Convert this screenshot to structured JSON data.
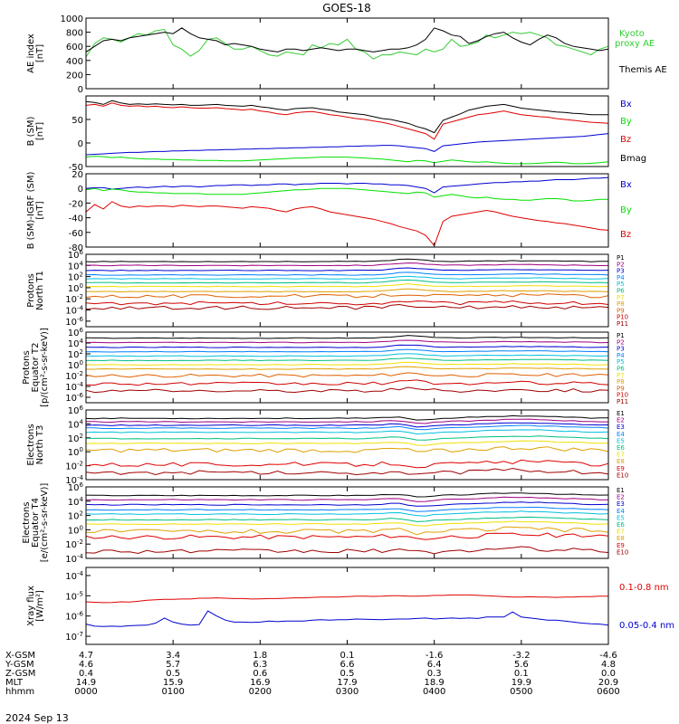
{
  "title": "GOES-18",
  "date_label": "2024 Sep 13",
  "colors": {
    "axis": "#000000",
    "black": "#000000",
    "green": "#00e000",
    "red": "#e00000",
    "blue": "#0000d0",
    "kyoto": "#33cc33"
  },
  "bottom_table": {
    "row_labels": [
      "X-GSM",
      "Y-GSM",
      "Z-GSM",
      "MLT",
      "hhmm"
    ],
    "columns": [
      [
        "4.7",
        "4.6",
        "0.4",
        "14.9",
        "0000"
      ],
      [
        "3.4",
        "5.7",
        "0.5",
        "15.9",
        "0100"
      ],
      [
        "1.8",
        "6.3",
        "0.6",
        "16.9",
        "0200"
      ],
      [
        "0.1",
        "6.6",
        "0.5",
        "17.9",
        "0300"
      ],
      [
        "-1.6",
        "6.4",
        "0.3",
        "18.9",
        "0400"
      ],
      [
        "-3.2",
        "5.6",
        "0.1",
        "19.9",
        "0500"
      ],
      [
        "-4.6",
        "4.8",
        "0.0",
        "20.9",
        "0600"
      ]
    ]
  },
  "particle_labels": {
    "protons": [
      "P1",
      "P2",
      "P3",
      "P4",
      "P5",
      "P6",
      "P7",
      "P8",
      "P9",
      "P10",
      "P11"
    ],
    "electrons": [
      "E1",
      "E2",
      "E3",
      "E4",
      "E5",
      "E6",
      "E7",
      "E8",
      "E9",
      "E10"
    ]
  },
  "chart_data": [
    {
      "id": "ae",
      "type": "line",
      "ylabel": "AE index\n[nT]",
      "ylim": [
        0,
        1000
      ],
      "ticks": [
        "0",
        "200",
        "400",
        "600",
        "800",
        "1000"
      ],
      "series": [
        {
          "name": "Kyoto proxy AE",
          "color": "kyoto",
          "values": [
            450,
            640,
            720,
            700,
            660,
            720,
            780,
            760,
            820,
            840,
            620,
            560,
            460,
            540,
            700,
            720,
            640,
            560,
            560,
            600,
            540,
            480,
            460,
            520,
            500,
            480,
            620,
            580,
            640,
            620,
            700,
            560,
            520,
            420,
            480,
            480,
            520,
            500,
            480,
            560,
            520,
            560,
            700,
            600,
            620,
            660,
            760,
            720,
            760,
            800,
            780,
            800,
            760,
            720,
            620,
            600,
            560,
            520,
            480,
            560,
            600
          ]
        },
        {
          "name": "Themis AE",
          "color": "black",
          "values": [
            520,
            600,
            680,
            700,
            680,
            720,
            740,
            760,
            780,
            800,
            780,
            860,
            780,
            720,
            700,
            680,
            620,
            640,
            620,
            600,
            560,
            540,
            520,
            560,
            560,
            540,
            560,
            580,
            560,
            540,
            560,
            560,
            540,
            520,
            540,
            560,
            560,
            580,
            620,
            700,
            860,
            820,
            760,
            740,
            640,
            680,
            740,
            780,
            800,
            720,
            660,
            620,
            700,
            760,
            720,
            640,
            600,
            580,
            560,
            540,
            560
          ]
        }
      ]
    },
    {
      "id": "b",
      "type": "line",
      "ylabel": "B (SM)\n[nT]",
      "ylim": [
        -50,
        100
      ],
      "ticks": [
        "-50",
        "0",
        "50"
      ],
      "series": [
        {
          "name": "Bx",
          "color": "blue",
          "values": [
            -25,
            -24,
            -23,
            -22,
            -21,
            -20,
            -20,
            -19,
            -18,
            -18,
            -17,
            -17,
            -16,
            -16,
            -15,
            -15,
            -14,
            -14,
            -13,
            -13,
            -12,
            -12,
            -11,
            -11,
            -10,
            -10,
            -9,
            -9,
            -8,
            -8,
            -7,
            -7,
            -6,
            -6,
            -5,
            -5,
            -6,
            -8,
            -10,
            -12,
            -18,
            -6,
            -4,
            -2,
            0,
            2,
            3,
            4,
            5,
            6,
            7,
            8,
            9,
            10,
            11,
            12,
            13,
            14,
            16,
            18,
            20
          ]
        },
        {
          "name": "By",
          "color": "green",
          "values": [
            -30,
            -28,
            -29,
            -31,
            -30,
            -32,
            -33,
            -34,
            -34,
            -35,
            -35,
            -36,
            -36,
            -37,
            -37,
            -37,
            -38,
            -38,
            -38,
            -37,
            -36,
            -35,
            -34,
            -33,
            -32,
            -32,
            -31,
            -30,
            -30,
            -30,
            -30,
            -31,
            -32,
            -33,
            -34,
            -36,
            -38,
            -40,
            -37,
            -38,
            -42,
            -39,
            -36,
            -38,
            -40,
            -41,
            -40,
            -42,
            -43,
            -44,
            -44,
            -44,
            -43,
            -42,
            -41,
            -42,
            -44,
            -44,
            -43,
            -42,
            -40
          ]
        },
        {
          "name": "Bz",
          "color": "red",
          "values": [
            80,
            82,
            78,
            85,
            80,
            78,
            79,
            77,
            78,
            76,
            75,
            77,
            75,
            74,
            74,
            75,
            73,
            72,
            70,
            72,
            68,
            66,
            62,
            60,
            64,
            66,
            67,
            64,
            60,
            58,
            55,
            52,
            50,
            47,
            44,
            40,
            35,
            30,
            25,
            20,
            8,
            40,
            45,
            50,
            55,
            60,
            62,
            65,
            68,
            64,
            60,
            58,
            56,
            55,
            52,
            50,
            48,
            46,
            44,
            43,
            42
          ]
        },
        {
          "name": "Bmag",
          "color": "black",
          "values": [
            88,
            86,
            82,
            90,
            85,
            82,
            83,
            82,
            83,
            82,
            81,
            82,
            80,
            80,
            81,
            82,
            80,
            79,
            78,
            80,
            77,
            75,
            72,
            70,
            73,
            74,
            75,
            72,
            70,
            66,
            64,
            62,
            60,
            56,
            52,
            50,
            46,
            42,
            35,
            30,
            22,
            48,
            55,
            62,
            70,
            74,
            78,
            80,
            82,
            78,
            74,
            72,
            70,
            68,
            66,
            65,
            63,
            62,
            60,
            60,
            60
          ]
        }
      ]
    },
    {
      "id": "bigrf",
      "type": "line",
      "ylabel": "B (SM)-IGRF (SM)\n[nT]",
      "ylim": [
        -80,
        20
      ],
      "ticks": [
        "-80",
        "-60",
        "-40",
        "-20",
        "0",
        "20"
      ],
      "series": [
        {
          "name": "Bx",
          "color": "blue",
          "values": [
            0,
            1,
            1,
            -1,
            0,
            1,
            2,
            1,
            2,
            3,
            2,
            3,
            3,
            2,
            3,
            4,
            4,
            5,
            5,
            4,
            5,
            5,
            6,
            6,
            5,
            6,
            6,
            7,
            7,
            7,
            6,
            7,
            7,
            6,
            6,
            5,
            5,
            4,
            2,
            0,
            -6,
            2,
            3,
            4,
            5,
            6,
            7,
            8,
            8,
            9,
            9,
            10,
            10,
            11,
            12,
            12,
            12,
            13,
            14,
            14,
            15
          ]
        },
        {
          "name": "By",
          "color": "green",
          "values": [
            -2,
            0,
            -3,
            -1,
            -2,
            -4,
            -5,
            -5,
            -6,
            -6,
            -7,
            -7,
            -7,
            -7,
            -8,
            -8,
            -8,
            -8,
            -8,
            -7,
            -6,
            -5,
            -4,
            -3,
            -2,
            -2,
            -1,
            0,
            0,
            0,
            0,
            -1,
            -2,
            -3,
            -4,
            -5,
            -6,
            -7,
            -5,
            -6,
            -12,
            -10,
            -8,
            -10,
            -12,
            -13,
            -12,
            -14,
            -15,
            -15,
            -16,
            -16,
            -15,
            -14,
            -14,
            -15,
            -17,
            -17,
            -16,
            -15,
            -15
          ]
        },
        {
          "name": "Bz",
          "color": "red",
          "values": [
            -32,
            -22,
            -28,
            -18,
            -24,
            -26,
            -24,
            -25,
            -24,
            -24,
            -25,
            -23,
            -24,
            -25,
            -24,
            -24,
            -25,
            -26,
            -27,
            -25,
            -26,
            -27,
            -30,
            -32,
            -28,
            -26,
            -25,
            -28,
            -32,
            -34,
            -36,
            -38,
            -40,
            -42,
            -45,
            -48,
            -52,
            -55,
            -58,
            -64,
            -78,
            -45,
            -38,
            -36,
            -34,
            -32,
            -30,
            -32,
            -35,
            -38,
            -40,
            -42,
            -44,
            -45,
            -47,
            -48,
            -50,
            -52,
            -54,
            -56,
            -57
          ]
        }
      ]
    },
    {
      "id": "pnorth",
      "type": "line",
      "log": true,
      "ylabel": "Protons\nNorth T1",
      "ylim_exp": [
        -7,
        6
      ],
      "ticks": [
        "10^6",
        "10^4",
        "10^2",
        "10^0",
        "10^-2",
        "10^-4",
        "10^-6"
      ],
      "channel_levels": [
        4.7,
        4.0,
        3.1,
        2.3,
        1.6,
        0.9,
        0.2,
        -0.7,
        -1.5,
        -2.8,
        -3.6
      ]
    },
    {
      "id": "pequator",
      "type": "line",
      "log": true,
      "ylabel": "Protons\nEquator T2\n[p/(cm²-s-sr-keV)]",
      "ylim_exp": [
        -7,
        6
      ],
      "ticks": [
        "10^6",
        "10^4",
        "10^2",
        "10^0",
        "10^-2",
        "10^-4",
        "10^-6"
      ],
      "channel_levels": [
        4.9,
        4.1,
        3.2,
        2.4,
        1.6,
        0.8,
        0.0,
        -0.8,
        -2.0,
        -3.5,
        -4.8
      ]
    },
    {
      "id": "enorth",
      "type": "line",
      "log": true,
      "ylabel": "Electrons\nNorth T3",
      "ylim_exp": [
        -4,
        6
      ],
      "ticks": [
        "10^6",
        "10^4",
        "10^2",
        "10^0",
        "10^-2",
        "10^-4"
      ],
      "channel_levels": [
        4.8,
        4.3,
        3.8,
        3.4,
        2.8,
        1.9,
        1.2,
        0.2,
        -1.8,
        -3.0
      ]
    },
    {
      "id": "eequator",
      "type": "line",
      "log": true,
      "ylabel": "Electrons\nEquator T4\n[e/(cm²-s-sr-keV)]",
      "ylim_exp": [
        -4,
        6
      ],
      "ticks": [
        "10^6",
        "10^4",
        "10^2",
        "10^0",
        "10^-2",
        "10^-4"
      ],
      "channel_levels": [
        4.8,
        4.2,
        3.5,
        2.8,
        2.2,
        1.4,
        0.8,
        -0.2,
        -1.0,
        -3.0
      ]
    },
    {
      "id": "xray",
      "type": "line",
      "log": true,
      "ylabel": "Xray flux\n[W/m²]",
      "ylim_exp": [
        -7.4,
        -3.6
      ],
      "ticks": [
        "10^-4",
        "10^-5",
        "10^-6",
        "10^-7"
      ],
      "series": [
        {
          "name": "0.1-0.8 nm",
          "color": "red",
          "values_exp": [
            -5.3,
            -5.32,
            -5.34,
            -5.33,
            -5.3,
            -5.31,
            -5.27,
            -5.22,
            -5.2,
            -5.18,
            -5.18,
            -5.16,
            -5.16,
            -5.12,
            -5.12,
            -5.1,
            -5.12,
            -5.14,
            -5.14,
            -5.16,
            -5.15,
            -5.14,
            -5.14,
            -5.12,
            -5.1,
            -5.1,
            -5.08,
            -5.06,
            -5.06,
            -5.06,
            -5.04,
            -5.02,
            -5.02,
            -5.03,
            -5.02,
            -5.0,
            -5.0,
            -5.02,
            -5.02,
            -5.01,
            -4.98,
            -4.98,
            -4.96,
            -4.96,
            -4.96,
            -4.98,
            -5.0,
            -5.02,
            -5.04,
            -5.06,
            -5.06,
            -5.05,
            -5.06,
            -5.06,
            -5.08,
            -5.06,
            -5.06,
            -5.04,
            -5.04,
            -5.02,
            -5.02
          ]
        },
        {
          "name": "0.05-0.4 nm",
          "color": "blue",
          "values_exp": [
            -6.4,
            -6.5,
            -6.52,
            -6.5,
            -6.52,
            -6.48,
            -6.46,
            -6.45,
            -6.35,
            -6.1,
            -6.3,
            -6.4,
            -6.45,
            -6.42,
            -5.75,
            -6.0,
            -6.2,
            -6.3,
            -6.3,
            -6.32,
            -6.3,
            -6.25,
            -6.28,
            -6.25,
            -6.25,
            -6.25,
            -6.2,
            -6.18,
            -6.2,
            -6.18,
            -6.18,
            -6.15,
            -6.16,
            -6.17,
            -6.18,
            -6.16,
            -6.15,
            -6.15,
            -6.12,
            -6.1,
            -6.15,
            -6.12,
            -6.1,
            -6.12,
            -6.1,
            -6.12,
            -6.05,
            -6.05,
            -6.05,
            -5.8,
            -6.05,
            -6.1,
            -6.15,
            -6.2,
            -6.2,
            -6.25,
            -6.3,
            -6.35,
            -6.38,
            -6.4,
            -6.45
          ]
        }
      ]
    }
  ]
}
